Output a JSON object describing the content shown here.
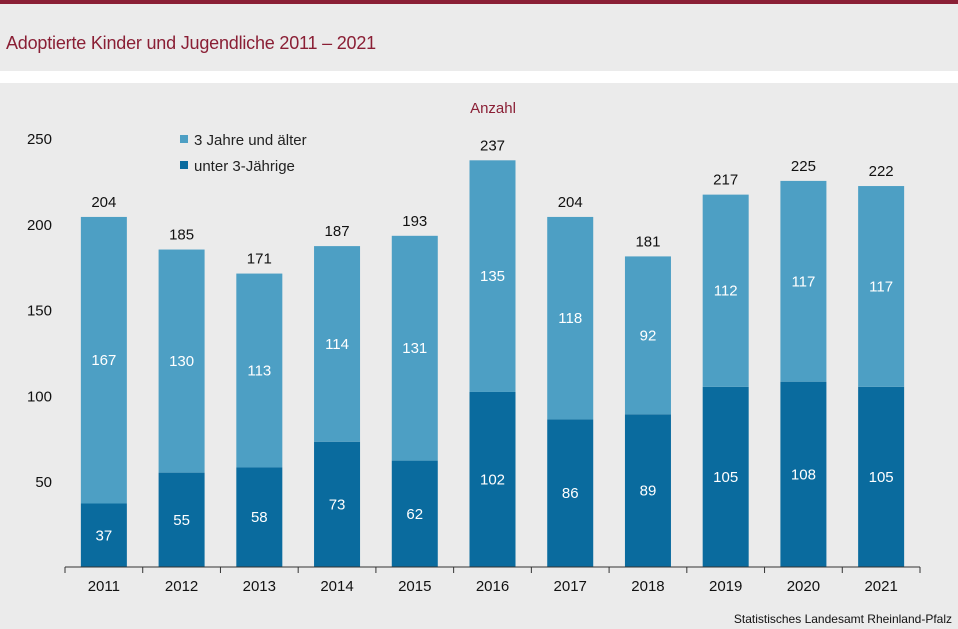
{
  "title": "Adoptierte Kinder und Jugendliche 2011 – 2021",
  "source": "Statistisches Landesamt  Rheinland-Pfalz",
  "colors": {
    "accent": "#8a1f35",
    "series_upper": "#4d9fc4",
    "series_lower": "#0a6b9e",
    "background": "#ebebeb"
  },
  "chart_data": {
    "type": "bar",
    "stacked": true,
    "unit_label": "Anzahl",
    "categories": [
      "2011",
      "2012",
      "2013",
      "2014",
      "2015",
      "2016",
      "2017",
      "2018",
      "2019",
      "2020",
      "2021"
    ],
    "series": [
      {
        "name": "unter 3-Jährige",
        "values": [
          37,
          55,
          58,
          73,
          62,
          102,
          86,
          89,
          105,
          108,
          105
        ]
      },
      {
        "name": "3 Jahre und älter",
        "values": [
          167,
          130,
          113,
          114,
          131,
          135,
          118,
          92,
          112,
          117,
          117
        ]
      }
    ],
    "totals": [
      204,
      185,
      171,
      187,
      193,
      237,
      204,
      181,
      217,
      225,
      222
    ],
    "ylim": [
      0,
      250
    ],
    "yticks": [
      50,
      100,
      150,
      200,
      250
    ],
    "legend": [
      "3 Jahre und älter",
      "unter 3-Jährige"
    ],
    "legend_position": "top-left"
  }
}
